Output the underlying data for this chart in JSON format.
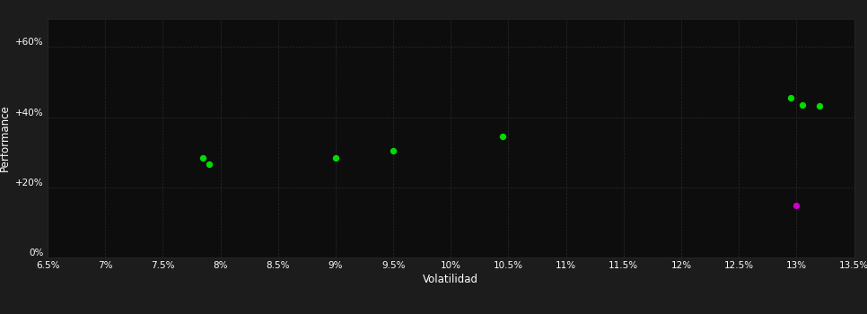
{
  "background_color": "#1c1c1c",
  "plot_bg_color": "#0d0d0d",
  "grid_color": "#2a2a2a",
  "text_color": "#ffffff",
  "xlabel": "Volatilidad",
  "ylabel": "Performance",
  "xlim": [
    0.065,
    0.135
  ],
  "ylim": [
    0.0,
    0.68
  ],
  "xticks": [
    0.065,
    0.07,
    0.075,
    0.08,
    0.085,
    0.09,
    0.095,
    0.1,
    0.105,
    0.11,
    0.115,
    0.12,
    0.125,
    0.13,
    0.135
  ],
  "yticks": [
    0.0,
    0.2,
    0.4,
    0.6
  ],
  "ytick_labels": [
    "0%",
    "+20%",
    "+40%",
    "+60%"
  ],
  "xtick_labels": [
    "6.5%",
    "7%",
    "7.5%",
    "8%",
    "8.5%",
    "9%",
    "9.5%",
    "10%",
    "10.5%",
    "11%",
    "11.5%",
    "12%",
    "12.5%",
    "13%",
    "13.5%"
  ],
  "green_points": [
    [
      0.0785,
      0.285
    ],
    [
      0.079,
      0.265
    ],
    [
      0.09,
      0.285
    ],
    [
      0.095,
      0.305
    ],
    [
      0.1045,
      0.345
    ],
    [
      0.1295,
      0.455
    ],
    [
      0.1305,
      0.435
    ],
    [
      0.132,
      0.432
    ]
  ],
  "magenta_points": [
    [
      0.13,
      0.148
    ]
  ],
  "green_color": "#00dd00",
  "magenta_color": "#cc00cc",
  "marker_size": 28
}
